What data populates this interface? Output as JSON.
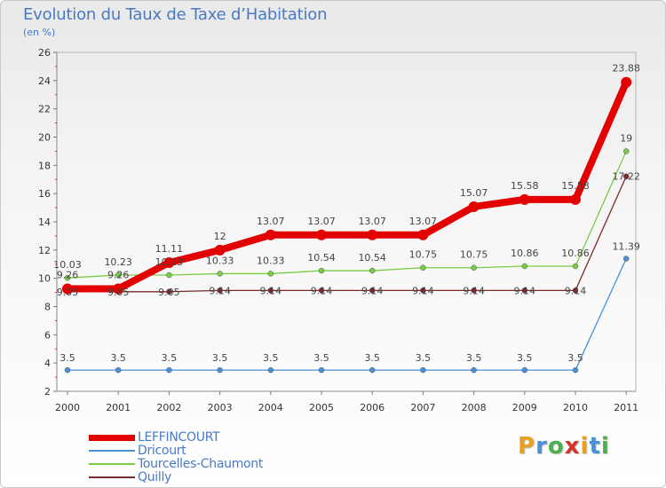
{
  "header": {
    "title": "Evolution du Taux de Taxe d’Habitation",
    "subtitle": "(en %)"
  },
  "logo": {
    "text": "Proxiti",
    "letter_colors": [
      "#e8a020",
      "#4a90d9",
      "#4caf50",
      "#d9342b",
      "#e8a020",
      "#4a90d9",
      "#4caf50"
    ]
  },
  "chart_data": {
    "type": "line",
    "x": [
      "2000",
      "2001",
      "2002",
      "2003",
      "2004",
      "2005",
      "2006",
      "2007",
      "2008",
      "2009",
      "2010",
      "2011"
    ],
    "yticks": [
      2,
      4,
      6,
      8,
      10,
      12,
      14,
      16,
      18,
      20,
      22,
      24,
      26
    ],
    "ylim": [
      2,
      26
    ],
    "grid": false,
    "legend_position": "bottom-left",
    "series": [
      {
        "name": "Quilly",
        "color": "#7a2a2a",
        "values": [
          9.05,
          9.05,
          9.05,
          9.14,
          9.14,
          9.14,
          9.14,
          9.14,
          9.14,
          9.14,
          9.14,
          17.22
        ],
        "labels": [
          "9.05",
          "9.05",
          "9.05",
          "9.14",
          "9.14",
          "9.14",
          "9.14",
          "9.14",
          "9.14",
          "9.14",
          "9.14",
          "17.22"
        ]
      },
      {
        "name": "Dricourt",
        "color": "#4a90d9",
        "values": [
          3.5,
          3.5,
          3.5,
          3.5,
          3.5,
          3.5,
          3.5,
          3.5,
          3.5,
          3.5,
          3.5,
          11.39
        ],
        "labels": [
          "3.5",
          "3.5",
          "3.5",
          "3.5",
          "3.5",
          "3.5",
          "3.5",
          "3.5",
          "3.5",
          "3.5",
          "3.5",
          "11.39"
        ]
      },
      {
        "name": "Tourcelles-Chaumont",
        "color": "#77cc44",
        "values": [
          10.03,
          10.23,
          10.23,
          10.33,
          10.33,
          10.54,
          10.54,
          10.75,
          10.75,
          10.86,
          10.86,
          19
        ],
        "labels": [
          "10.03",
          "10.23",
          "10.23",
          "10.33",
          "10.33",
          "10.54",
          "10.54",
          "10.75",
          "10.75",
          "10.86",
          "10.86",
          "19"
        ]
      },
      {
        "name": "LEFFINCOURT",
        "color": "#e30000",
        "values": [
          9.26,
          9.26,
          11.11,
          12,
          13.07,
          13.07,
          13.07,
          13.07,
          15.07,
          15.58,
          15.58,
          23.88
        ],
        "labels": [
          "9.26",
          "9.26",
          "11.11",
          "12",
          "13.07",
          "13.07",
          "13.07",
          "13.07",
          "15.07",
          "15.58",
          "15.58",
          "23.88"
        ]
      }
    ],
    "legend_order": [
      "LEFFINCOURT",
      "Dricourt",
      "Tourcelles-Chaumont",
      "Quilly"
    ]
  }
}
